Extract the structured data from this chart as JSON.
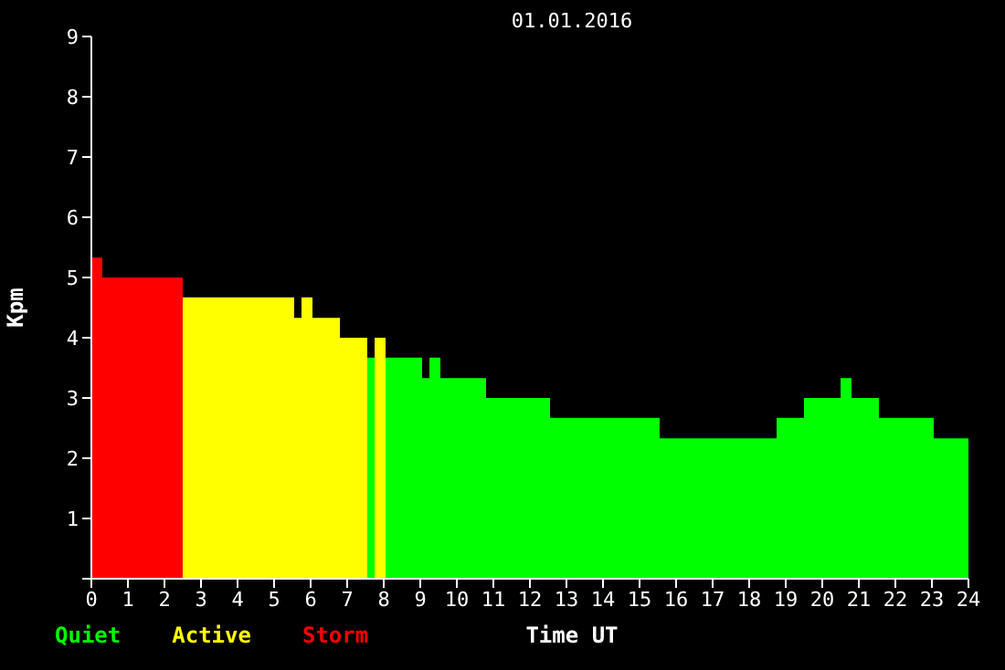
{
  "chart_data": {
    "type": "histogram",
    "title": "01.01.2016",
    "xlabel": "Time UT",
    "ylabel": "Kpm",
    "bins": [
      0,
      0.3,
      2.5,
      5.55,
      5.75,
      6.05,
      6.8,
      7.55,
      7.75,
      8.05,
      9.05,
      9.25,
      9.55,
      10.8,
      12.55,
      15.55,
      18.75,
      19.5,
      20.5,
      20.8,
      21.55,
      23.05,
      24
    ],
    "series": [
      {
        "name": "Quiet",
        "color": "#00ff00",
        "values": [
          null,
          null,
          null,
          null,
          null,
          null,
          null,
          3.67,
          null,
          3.67,
          3.33,
          3.67,
          3.33,
          3,
          2.67,
          2.33,
          2.67,
          3,
          3.33,
          3,
          2.67,
          2.33
        ]
      },
      {
        "name": "Active",
        "color": "#ffff00",
        "values": [
          null,
          null,
          4.67,
          4.33,
          4.67,
          4.33,
          4,
          null,
          4,
          null,
          null,
          null,
          null,
          null,
          null,
          null,
          null,
          null,
          null,
          null,
          null,
          null
        ]
      },
      {
        "name": "Storm",
        "color": "#ff0000",
        "values": [
          5.33,
          5,
          null,
          null,
          null,
          null,
          null,
          null,
          null,
          null,
          null,
          null,
          null,
          null,
          null,
          null,
          null,
          null,
          null,
          null,
          null,
          null
        ]
      }
    ],
    "xlim": [
      0,
      24
    ],
    "xticks": [
      0,
      1,
      2,
      3,
      4,
      5,
      6,
      7,
      8,
      9,
      10,
      11,
      12,
      13,
      14,
      15,
      16,
      17,
      18,
      19,
      20,
      21,
      22,
      23,
      24
    ],
    "ylim": [
      0,
      9
    ],
    "yticks": [
      {
        "value": 0,
        "label": null
      },
      1,
      2,
      3,
      4,
      5,
      6,
      7,
      8,
      9
    ],
    "legend": "bottom left"
  }
}
